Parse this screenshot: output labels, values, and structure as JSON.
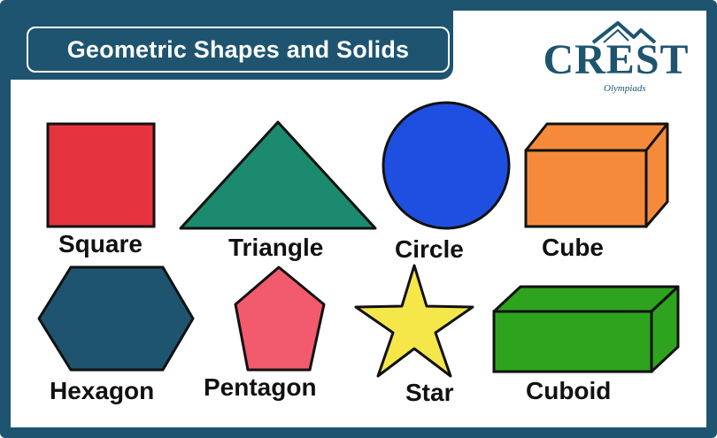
{
  "header": {
    "title": "Geometric Shapes and Solids"
  },
  "logo": {
    "name": "CREST",
    "tagline": "Olympiads"
  },
  "shapes": [
    {
      "label": "Square",
      "color": "#e63340",
      "icon": "square-icon"
    },
    {
      "label": "Triangle",
      "color": "#1c8a6e",
      "icon": "triangle-icon"
    },
    {
      "label": "Circle",
      "color": "#1f4fe0",
      "icon": "circle-icon"
    },
    {
      "label": "Cube",
      "color": "#f58b3a",
      "icon": "cube-icon"
    },
    {
      "label": "Hexagon",
      "color": "#1e5470",
      "icon": "hexagon-icon"
    },
    {
      "label": "Pentagon",
      "color": "#f25a6e",
      "icon": "pentagon-icon"
    },
    {
      "label": "Star",
      "color": "#f5e64a",
      "icon": "star-icon"
    },
    {
      "label": "Cuboid",
      "color": "#2ea31e",
      "icon": "cuboid-icon"
    }
  ]
}
